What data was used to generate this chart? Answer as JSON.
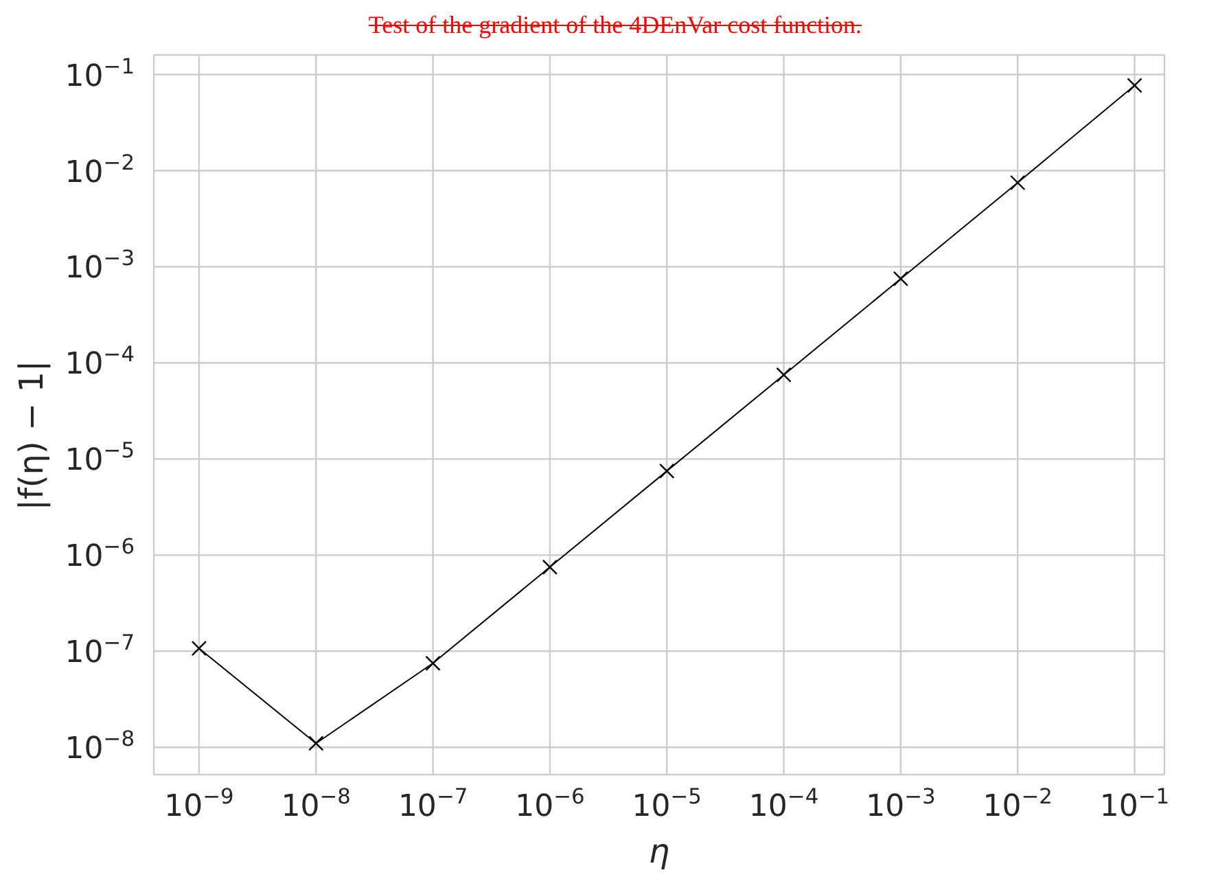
{
  "chart_data": {
    "type": "line",
    "title": "Test of the gradient of the 4DEnVar cost function.",
    "xlabel": "η",
    "ylabel": "|f(η) − 1|",
    "log": "xy",
    "grid": true,
    "marker": "cross",
    "line_style": "solid",
    "x": [
      1e-09,
      1e-08,
      1e-07,
      1e-06,
      1e-05,
      0.0001,
      0.001,
      0.01,
      0.1
    ],
    "series": [
      {
        "color": "#000000",
        "values": [
          1.07e-07,
          1.1e-08,
          7.5e-08,
          7.5e-07,
          7.5e-06,
          7.5e-05,
          0.00075,
          0.0075,
          0.077
        ]
      }
    ],
    "xlim": [
      4.1e-10,
      0.18
    ],
    "ylim": [
      5.2e-09,
      0.16
    ],
    "xticks": [
      {
        "value": 1e-09,
        "label": "10$^{−9}$"
      },
      {
        "value": 1e-08,
        "label": "10$^{−8}$"
      },
      {
        "value": 1e-07,
        "label": "10$^{−7}$"
      },
      {
        "value": 1e-06,
        "label": "10$^{−6}$"
      },
      {
        "value": 1e-05,
        "label": "10$^{−5}$"
      },
      {
        "value": 0.0001,
        "label": "10$^{−4}$"
      },
      {
        "value": 0.001,
        "label": "10$^{−3}$"
      },
      {
        "value": 0.01,
        "label": "10$^{−2}$"
      },
      {
        "value": 0.1,
        "label": "10$^{−1}$"
      }
    ],
    "yticks": [
      {
        "value": 1e-08,
        "label": "10$^{−8}$"
      },
      {
        "value": 1e-07,
        "label": "10$^{−7}$"
      },
      {
        "value": 1e-06,
        "label": "10$^{−6}$"
      },
      {
        "value": 1e-05,
        "label": "10$^{−5}$"
      },
      {
        "value": 0.0001,
        "label": "10$^{−4}$"
      },
      {
        "value": 0.001,
        "label": "10$^{−3}$"
      },
      {
        "value": 0.01,
        "label": "10$^{−2}$"
      },
      {
        "value": 0.1,
        "label": "10$^{−1}$"
      }
    ]
  }
}
